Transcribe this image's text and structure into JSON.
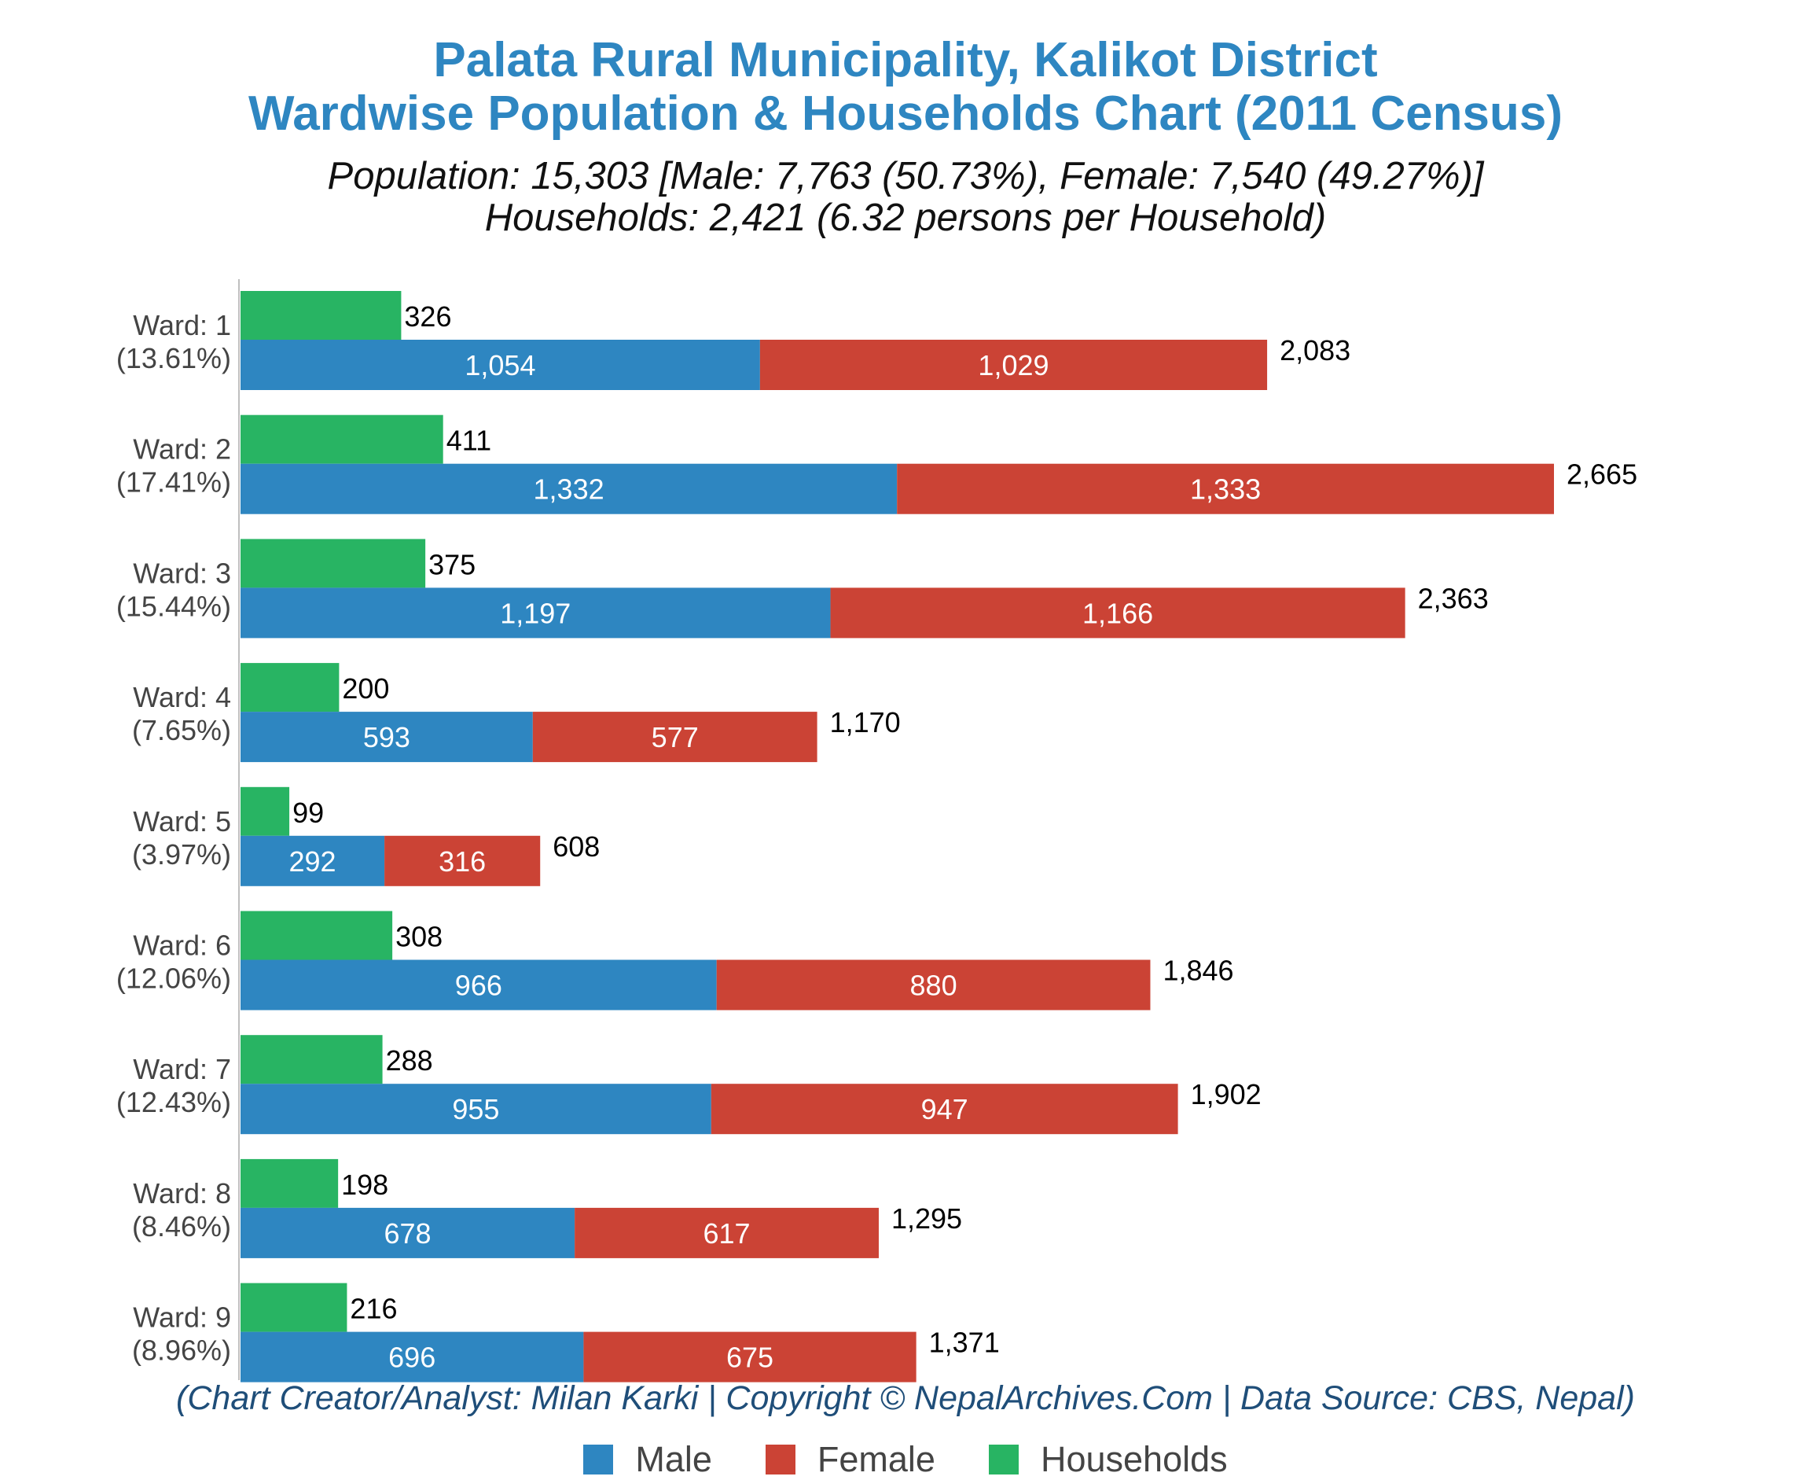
{
  "title_line1": "Palata Rural Municipality, Kalikot District",
  "title_line2": "Wardwise Population & Households Chart (2011 Census)",
  "subtitle_line1": "Population: 15,303 [Male: 7,763 (50.73%), Female: 7,540 (49.27%)]",
  "subtitle_line2": "Households: 2,421 (6.32 persons per Household)",
  "credit": "(Chart Creator/Analyst: Milan Karki | Copyright © NepalArchives.Com | Data Source: CBS, Nepal)",
  "legend": [
    {
      "label": "Male",
      "color": "#2e86c1"
    },
    {
      "label": "Female",
      "color": "#cb4335"
    },
    {
      "label": "Households",
      "color": "#28b463"
    }
  ],
  "colors": {
    "male": "#2e86c1",
    "female": "#cb4335",
    "households": "#28b463"
  },
  "chart_data": {
    "type": "bar",
    "orientation": "horizontal",
    "stacked": [
      "Male",
      "Female"
    ],
    "categories": [
      "Ward: 1",
      "Ward: 2",
      "Ward: 3",
      "Ward: 4",
      "Ward: 5",
      "Ward: 6",
      "Ward: 7",
      "Ward: 8",
      "Ward: 9"
    ],
    "category_percents": [
      "(13.61%)",
      "(17.41%)",
      "(15.44%)",
      "(7.65%)",
      "(3.97%)",
      "(12.06%)",
      "(12.43%)",
      "(8.46%)",
      "(8.96%)"
    ],
    "series": [
      {
        "name": "Male",
        "values": [
          1054,
          1332,
          1197,
          593,
          292,
          966,
          955,
          678,
          696
        ]
      },
      {
        "name": "Female",
        "values": [
          1029,
          1333,
          1166,
          577,
          316,
          880,
          947,
          617,
          675
        ]
      },
      {
        "name": "Households",
        "values": [
          326,
          411,
          375,
          200,
          99,
          308,
          288,
          198,
          216
        ]
      }
    ],
    "totals": [
      2083,
      2665,
      2363,
      1170,
      608,
      1846,
      1902,
      1295,
      1371
    ],
    "value_labels": {
      "Male": [
        "1,054",
        "1,332",
        "1,197",
        "593",
        "292",
        "966",
        "955",
        "678",
        "696"
      ],
      "Female": [
        "1,029",
        "1,333",
        "1,166",
        "577",
        "316",
        "880",
        "947",
        "617",
        "675"
      ],
      "Households": [
        "326",
        "411",
        "375",
        "200",
        "99",
        "308",
        "288",
        "198",
        "216"
      ],
      "Totals": [
        "2,083",
        "2,665",
        "2,363",
        "1,170",
        "608",
        "1,846",
        "1,902",
        "1,295",
        "1,371"
      ]
    },
    "xlim": [
      0,
      2800
    ],
    "grid": false,
    "legend_position": "bottom"
  }
}
